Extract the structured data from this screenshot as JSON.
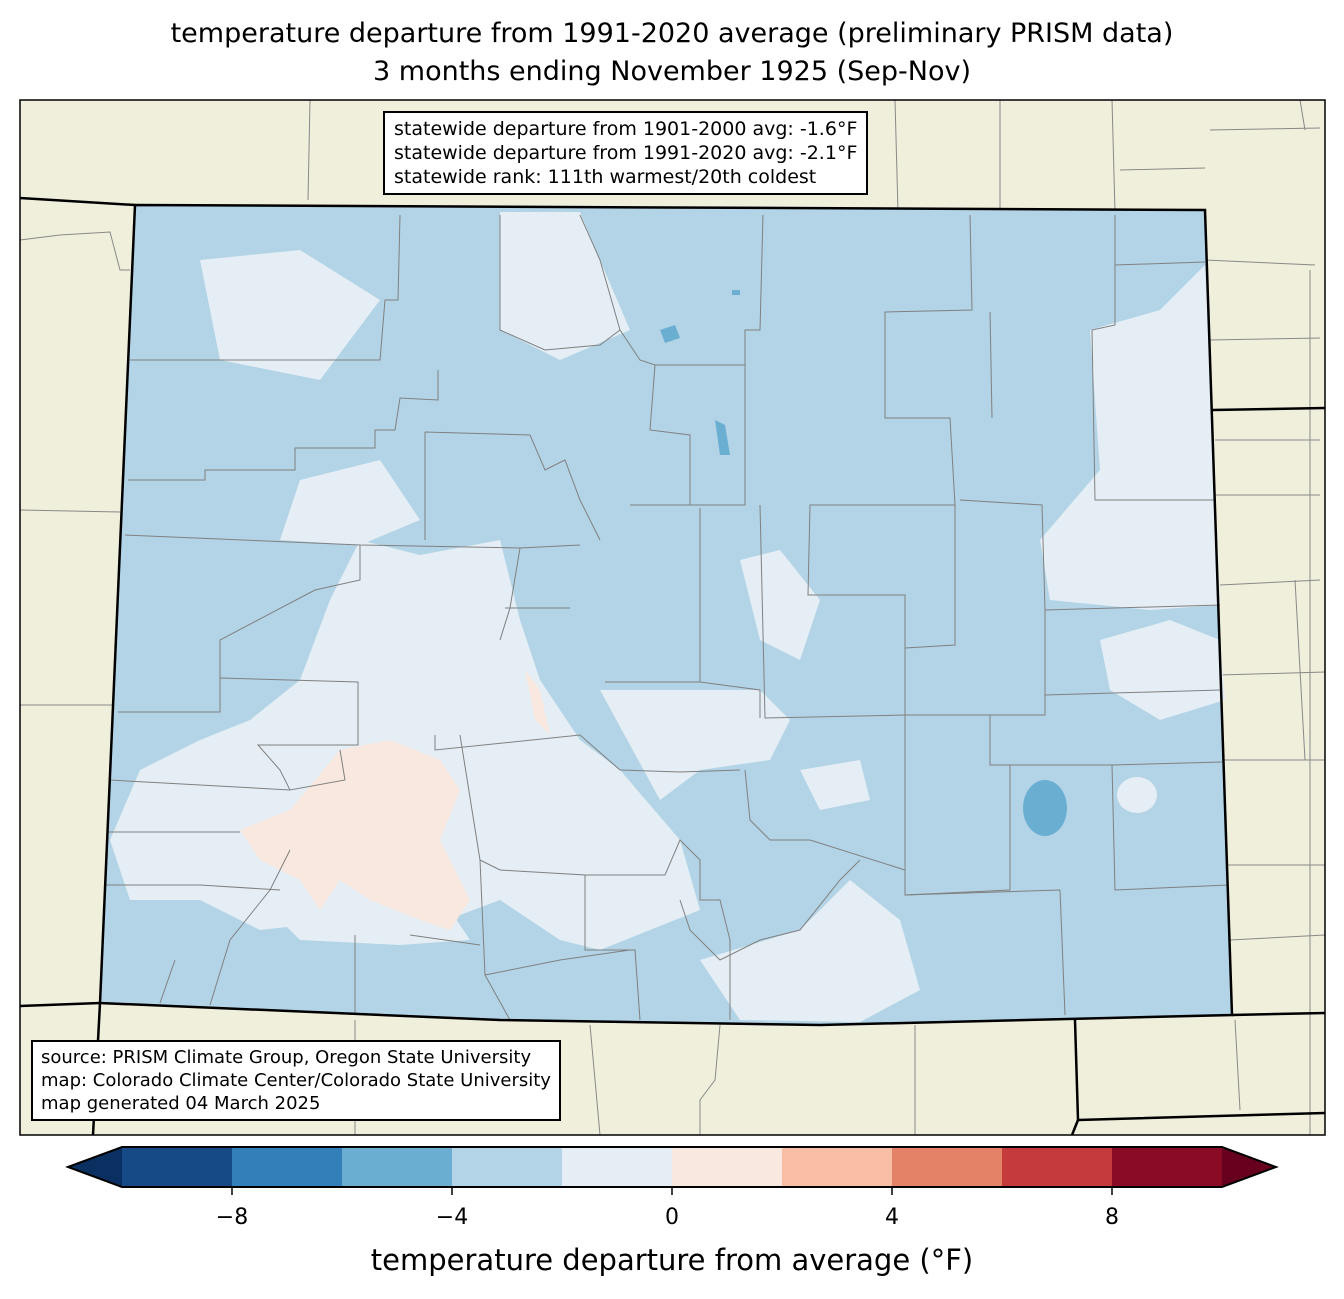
{
  "title": {
    "line1": "temperature departure from 1991-2020 average (preliminary PRISM data)",
    "line2": "3 months ending November 1925 (Sep-Nov)"
  },
  "stats_box": {
    "lines": [
      "statewide departure from 1901-2000 avg: -1.6°F",
      "statewide departure from 1991-2020 avg: -2.1°F",
      "statewide rank: 111th warmest/20th coldest"
    ]
  },
  "source_box": {
    "lines": [
      "source: PRISM Climate Group, Oregon State University",
      "map: Colorado Climate Center/Colorado State University",
      "map generated 04 March 2025"
    ]
  },
  "colorbar": {
    "label": "temperature departure from average (°F)",
    "range": [
      -10,
      10
    ],
    "bins": [
      {
        "from": -10,
        "to": -8,
        "color": "#154a87"
      },
      {
        "from": -8,
        "to": -6,
        "color": "#327fb9"
      },
      {
        "from": -6,
        "to": -4,
        "color": "#6aaed2"
      },
      {
        "from": -4,
        "to": -2,
        "color": "#b2d4e6"
      },
      {
        "from": -2,
        "to": 0,
        "color": "#e5eef4"
      },
      {
        "from": 0,
        "to": 2,
        "color": "#f9e8df"
      },
      {
        "from": 2,
        "to": 4,
        "color": "#f8bea5"
      },
      {
        "from": 4,
        "to": 6,
        "color": "#e48268"
      },
      {
        "from": 6,
        "to": 8,
        "color": "#c53b3c"
      },
      {
        "from": 8,
        "to": 10,
        "color": "#8a0b25"
      }
    ],
    "under_color": "#0a3061",
    "over_color": "#67001f",
    "ticks": [
      "−8",
      "−4",
      "0",
      "4",
      "8"
    ],
    "tick_values": [
      -8,
      -4,
      0,
      4,
      8
    ]
  },
  "colors": {
    "land": "#efefdc",
    "county_line": "#808080",
    "state_line": "#000000"
  }
}
